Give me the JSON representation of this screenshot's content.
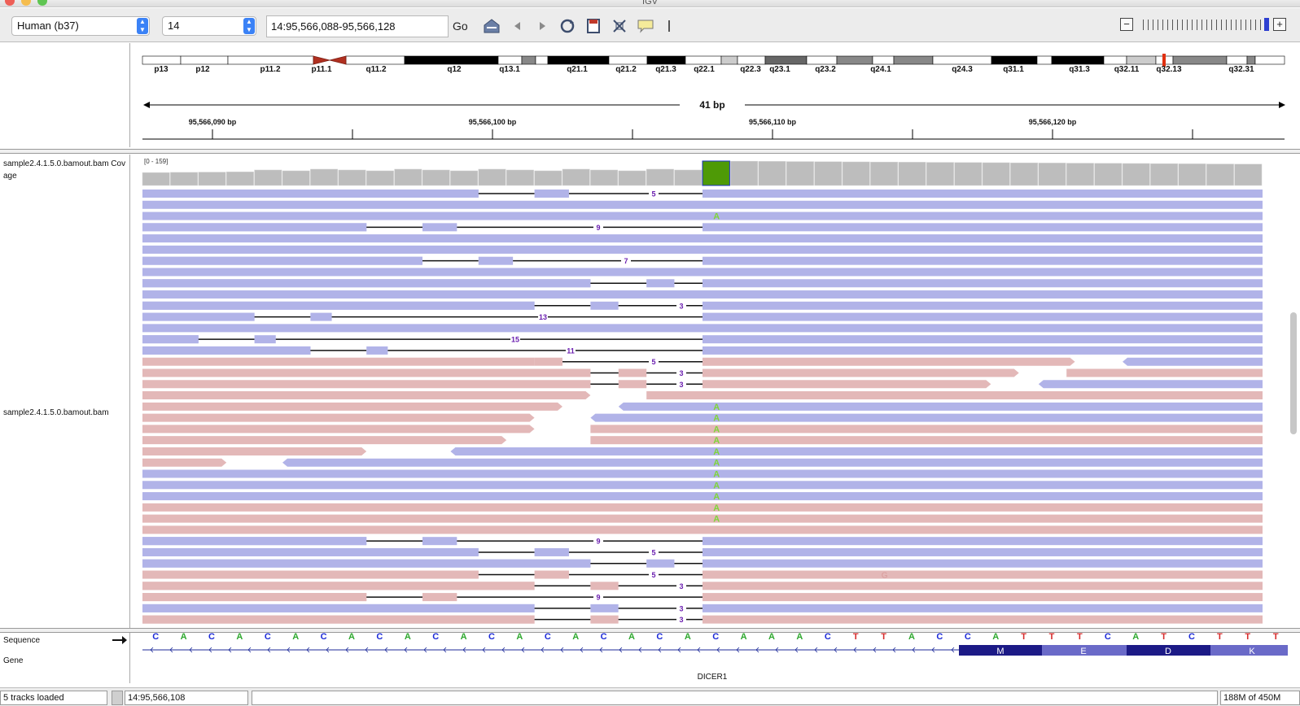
{
  "window": {
    "title": "IGV"
  },
  "toolbar": {
    "genome": "Human (b37)",
    "chromosome": "14",
    "locus": "14:95,566,088-95,566,128",
    "go_label": "Go",
    "icons": [
      "home-icon",
      "back-icon",
      "forward-icon",
      "refresh-icon",
      "region-of-interest-icon",
      "resize-icon",
      "popup-info-icon",
      "ruler-divider-icon"
    ],
    "zoom_minus": "−",
    "zoom_plus": "+"
  },
  "ideogram": {
    "bands": [
      "p13",
      "p12",
      "p11.2",
      "p11.1",
      "q11.2",
      "q12",
      "q13.1",
      "q21.1",
      "q21.2",
      "q21.3",
      "q22.1",
      "q22.3",
      "q23.1",
      "q23.2",
      "q24.1",
      "q24.3",
      "q31.1",
      "q31.3",
      "q32.11",
      "q32.13",
      "q32.31"
    ]
  },
  "ruler": {
    "span_label": "41 bp",
    "ticks": [
      "95,566,090 bp",
      "95,566,100 bp",
      "95,566,110 bp",
      "95,566,120 bp"
    ]
  },
  "tracks": {
    "coverage": {
      "name": "sample2.4.1.5.0.bamout.bam Coverage",
      "name_line1": "sample2.4.1.5.0.bamout.bam Cov",
      "name_line2": "age",
      "range": "[0 - 159]",
      "highlight_color": "#4e9a06",
      "bar_color": "#bdbdbd"
    },
    "alignment": {
      "name": "sample2.4.1.5.0.bamout.bam",
      "forward_color": "#b1b3e8",
      "reverse_color": "#e3b8b8",
      "mismatch_base": "A",
      "mismatch_color": "#7fd53a",
      "extra_mismatch": "G",
      "deletion_labels": [
        "5",
        "9",
        "7",
        "3",
        "13",
        "15",
        "11",
        "5",
        "3",
        "3",
        "9",
        "5",
        "5",
        "3",
        "9",
        "3",
        "3"
      ]
    },
    "sequence": {
      "name": "Sequence",
      "bases": [
        "C",
        "A",
        "C",
        "A",
        "C",
        "A",
        "C",
        "A",
        "C",
        "A",
        "C",
        "A",
        "C",
        "A",
        "C",
        "A",
        "C",
        "A",
        "C",
        "A",
        "C",
        "A",
        "A",
        "A",
        "C",
        "T",
        "T",
        "A",
        "C",
        "C",
        "A",
        "T",
        "T",
        "T",
        "C",
        "A",
        "T",
        "C",
        "T",
        "T",
        "T"
      ]
    },
    "gene": {
      "name": "Gene",
      "gene_name": "DICER1",
      "amino_acids": [
        "M",
        "E",
        "D",
        "K"
      ]
    }
  },
  "status": {
    "tracks_loaded": "5 tracks loaded",
    "position": "14:95,566,108",
    "memory": "188M of 450M"
  }
}
